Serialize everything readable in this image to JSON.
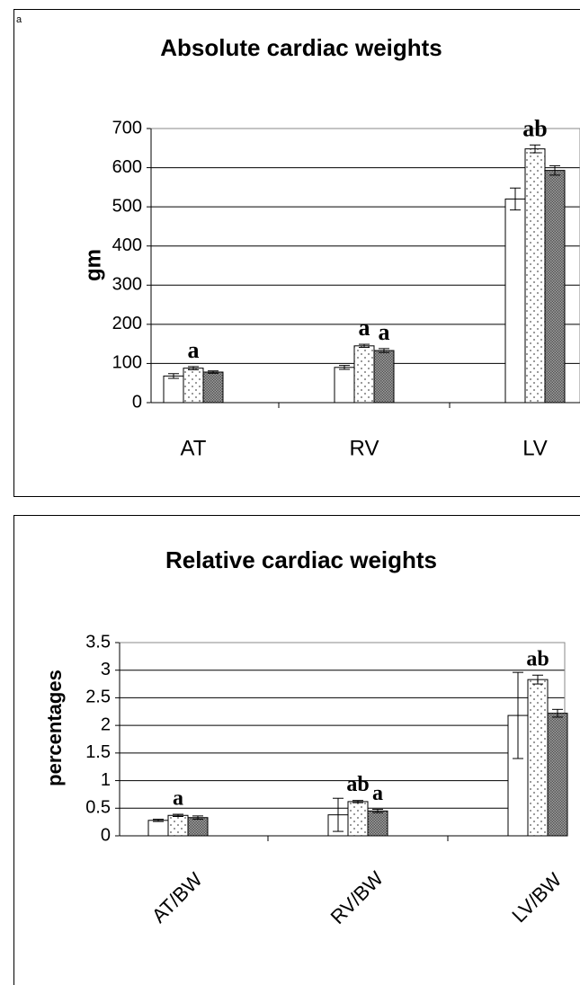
{
  "panel_label": "a",
  "chart_data": [
    {
      "type": "bar",
      "title": "Absolute cardiac weights",
      "y_label": "gm",
      "categories": [
        "AT",
        "RV",
        "LV"
      ],
      "ylim": [
        0,
        700
      ],
      "yticks": [
        0,
        100,
        200,
        300,
        400,
        500,
        600,
        700
      ],
      "grid": true,
      "series": [
        {
          "color": "#ffffff",
          "values": [
            68,
            90,
            520
          ],
          "errors": [
            6,
            5,
            28
          ],
          "annotations": [
            null,
            null,
            null
          ]
        },
        {
          "color": "#ffffff",
          "pattern": "dots",
          "values": [
            88,
            145,
            648
          ],
          "errors": [
            4,
            4,
            10
          ],
          "annotations": [
            "a",
            "a",
            "ab"
          ]
        },
        {
          "color": "#a0a0a0",
          "pattern": "crosshatch",
          "values": [
            78,
            133,
            593
          ],
          "errors": [
            3,
            5,
            12
          ],
          "annotations": [
            null,
            "a",
            null
          ]
        }
      ]
    },
    {
      "type": "bar",
      "title": "Relative cardiac weights",
      "y_label": "percentages",
      "categories": [
        "AT/BW",
        "RV/BW",
        "LV/BW"
      ],
      "ylim": [
        0,
        3.5
      ],
      "yticks": [
        0,
        0.5,
        1,
        1.5,
        2,
        2.5,
        3,
        3.5
      ],
      "grid": true,
      "series": [
        {
          "color": "#ffffff",
          "values": [
            0.28,
            0.38,
            2.18
          ],
          "errors": [
            0.02,
            0.3,
            0.78
          ],
          "annotations": [
            null,
            null,
            null
          ]
        },
        {
          "color": "#ffffff",
          "pattern": "dots",
          "values": [
            0.37,
            0.62,
            2.83
          ],
          "errors": [
            0.02,
            0.02,
            0.08
          ],
          "annotations": [
            "a",
            "ab",
            "ab"
          ]
        },
        {
          "color": "#a0a0a0",
          "pattern": "crosshatch",
          "values": [
            0.33,
            0.45,
            2.22
          ],
          "errors": [
            0.03,
            0.03,
            0.07
          ],
          "annotations": [
            null,
            "a",
            null
          ]
        }
      ]
    }
  ]
}
